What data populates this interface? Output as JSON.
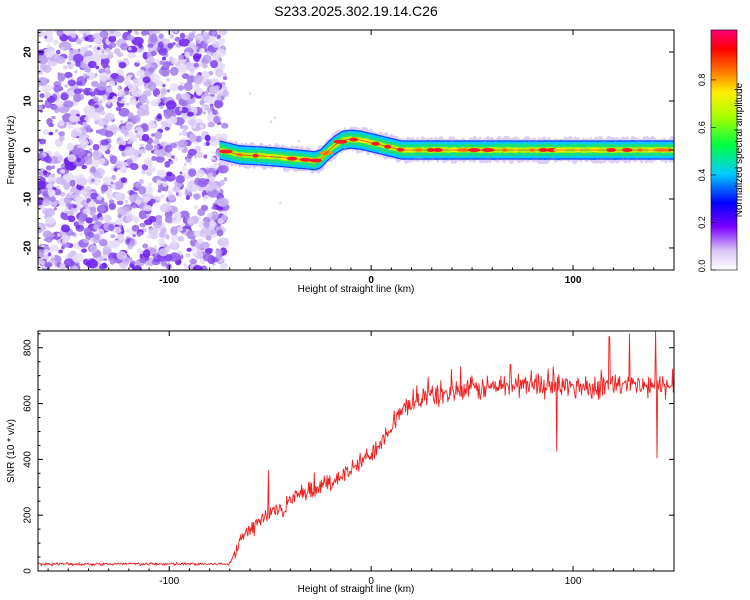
{
  "title": "S233.2025.302.19.14.C26",
  "chart_data": [
    {
      "type": "heatmap",
      "title": "S233.2025.302.19.14.C26",
      "xlabel": "Height of straight line (km)",
      "ylabel": "Frequency (Hz)",
      "xlim": [
        -165,
        150
      ],
      "ylim": [
        -24.5,
        24.5
      ],
      "xticks": [
        -100,
        0,
        100
      ],
      "yticks": [
        -20,
        -10,
        0,
        10,
        20
      ],
      "noise_region_x": [
        -165,
        -75
      ],
      "signal_line": {
        "x": [
          -75,
          -65,
          -55,
          -45,
          -38,
          -32,
          -28,
          -25,
          -22,
          -18,
          -14,
          -10,
          -5,
          0,
          5,
          10,
          15,
          30,
          50,
          70,
          90,
          110,
          130,
          150
        ],
        "y_hz": [
          0,
          -1,
          -1.2,
          -1.5,
          -1.8,
          -2,
          -2.2,
          -1.8,
          -0.5,
          1,
          2,
          2.2,
          2,
          1.5,
          1,
          0.5,
          0,
          0,
          0,
          0,
          0,
          0,
          0,
          0
        ],
        "band_halfwidth_hz": 1.6
      },
      "colorbar": {
        "label": "Normalized spectral amplitude",
        "range": [
          0,
          1
        ],
        "ticks": [
          "0.0",
          "0.2",
          "0.4",
          "0.6",
          "0.8"
        ],
        "tick_values": [
          0.0,
          0.2,
          0.4,
          0.6,
          0.8
        ]
      }
    },
    {
      "type": "line",
      "xlabel": "Height of straight line (km)",
      "ylabel": "SNR (10 * v/v)",
      "xlim": [
        -165,
        150
      ],
      "ylim": [
        0,
        860
      ],
      "xticks": [
        -100,
        0,
        100
      ],
      "yticks": [
        0,
        200,
        400,
        600,
        800
      ],
      "color": "#ee2222",
      "trend": {
        "x": [
          -165,
          -70,
          -65,
          -55,
          -40,
          -20,
          -10,
          0,
          10,
          20,
          30,
          60,
          80,
          100,
          120,
          140,
          150
        ],
        "y": [
          25,
          25,
          110,
          180,
          250,
          320,
          360,
          420,
          520,
          610,
          630,
          660,
          670,
          660,
          665,
          660,
          665
        ]
      },
      "spikes": [
        {
          "x": -51,
          "y": 360
        },
        {
          "x": 69,
          "y": 740
        },
        {
          "x": 118,
          "y": 840
        },
        {
          "x": 128,
          "y": 850
        },
        {
          "x": 141,
          "y": 860
        },
        {
          "x": 141.5,
          "y": 405
        },
        {
          "x": 92,
          "y": 430
        }
      ],
      "noise_amp": 40
    }
  ]
}
